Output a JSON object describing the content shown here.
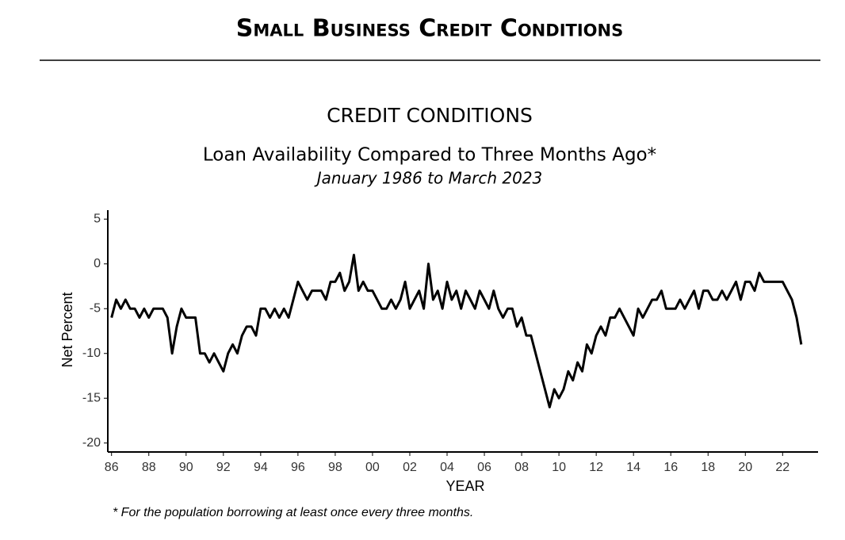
{
  "header": {
    "title": "Small Business Credit Conditions"
  },
  "chart_data": {
    "type": "line",
    "title": "CREDIT CONDITIONS",
    "subtitle": "Loan Availability Compared to Three Months Ago*",
    "period": "January 1986 to March 2023",
    "ylabel": "Net Percent",
    "xlabel": "YEAR",
    "footnote": "* For the population borrowing at least once every three months.",
    "xlim": [
      1985.8,
      2023.9
    ],
    "ylim": [
      -21,
      6
    ],
    "yticks": [
      5,
      0,
      -5,
      -10,
      -15,
      -20
    ],
    "xticks": [
      {
        "value": 1986,
        "label": "86"
      },
      {
        "value": 1988,
        "label": "88"
      },
      {
        "value": 1990,
        "label": "90"
      },
      {
        "value": 1992,
        "label": "92"
      },
      {
        "value": 1994,
        "label": "94"
      },
      {
        "value": 1996,
        "label": "96"
      },
      {
        "value": 1998,
        "label": "98"
      },
      {
        "value": 2000,
        "label": "00"
      },
      {
        "value": 2002,
        "label": "02"
      },
      {
        "value": 2004,
        "label": "04"
      },
      {
        "value": 2006,
        "label": "06"
      },
      {
        "value": 2008,
        "label": "08"
      },
      {
        "value": 2010,
        "label": "10"
      },
      {
        "value": 2012,
        "label": "12"
      },
      {
        "value": 2014,
        "label": "14"
      },
      {
        "value": 2016,
        "label": "16"
      },
      {
        "value": 2018,
        "label": "18"
      },
      {
        "value": 2020,
        "label": "20"
      },
      {
        "value": 2022,
        "label": "22"
      }
    ],
    "grid": false,
    "color": "#000000",
    "x": [
      1986,
      1986.25,
      1986.5,
      1986.75,
      1987,
      1987.25,
      1987.5,
      1987.75,
      1988,
      1988.25,
      1988.5,
      1988.75,
      1989,
      1989.25,
      1989.5,
      1989.75,
      1990,
      1990.25,
      1990.5,
      1990.75,
      1991,
      1991.25,
      1991.5,
      1991.75,
      1992,
      1992.25,
      1992.5,
      1992.75,
      1993,
      1993.25,
      1993.5,
      1993.75,
      1994,
      1994.25,
      1994.5,
      1994.75,
      1995,
      1995.25,
      1995.5,
      1995.75,
      1996,
      1996.25,
      1996.5,
      1996.75,
      1997,
      1997.25,
      1997.5,
      1997.75,
      1998,
      1998.25,
      1998.5,
      1998.75,
      1999,
      1999.25,
      1999.5,
      1999.75,
      2000,
      2000.25,
      2000.5,
      2000.75,
      2001,
      2001.25,
      2001.5,
      2001.75,
      2002,
      2002.25,
      2002.5,
      2002.75,
      2003,
      2003.25,
      2003.5,
      2003.75,
      2004,
      2004.25,
      2004.5,
      2004.75,
      2005,
      2005.25,
      2005.5,
      2005.75,
      2006,
      2006.25,
      2006.5,
      2006.75,
      2007,
      2007.25,
      2007.5,
      2007.75,
      2008,
      2008.25,
      2008.5,
      2008.75,
      2009,
      2009.25,
      2009.5,
      2009.75,
      2010,
      2010.25,
      2010.5,
      2010.75,
      2011,
      2011.25,
      2011.5,
      2011.75,
      2012,
      2012.25,
      2012.5,
      2012.75,
      2013,
      2013.25,
      2013.5,
      2013.75,
      2014,
      2014.25,
      2014.5,
      2014.75,
      2015,
      2015.25,
      2015.5,
      2015.75,
      2016,
      2016.25,
      2016.5,
      2016.75,
      2017,
      2017.25,
      2017.5,
      2017.75,
      2018,
      2018.25,
      2018.5,
      2018.75,
      2019,
      2019.25,
      2019.5,
      2019.75,
      2020,
      2020.25,
      2020.5,
      2020.75,
      2021,
      2021.25,
      2021.5,
      2021.75,
      2022,
      2022.25,
      2022.5,
      2022.75,
      2023
    ],
    "values": [
      -6,
      -4,
      -5,
      -4,
      -5,
      -5,
      -6,
      -5,
      -6,
      -5,
      -5,
      -5,
      -6,
      -10,
      -7,
      -5,
      -6,
      -6,
      -6,
      -10,
      -10,
      -11,
      -10,
      -11,
      -12,
      -10,
      -9,
      -10,
      -8,
      -7,
      -7,
      -8,
      -5,
      -5,
      -6,
      -5,
      -6,
      -5,
      -6,
      -4,
      -2,
      -3,
      -4,
      -3,
      -3,
      -3,
      -4,
      -2,
      -2,
      -1,
      -3,
      -2,
      1,
      -3,
      -2,
      -3,
      -3,
      -4,
      -5,
      -5,
      -4,
      -5,
      -4,
      -2,
      -5,
      -4,
      -3,
      -5,
      0,
      -4,
      -3,
      -5,
      -2,
      -4,
      -3,
      -5,
      -3,
      -4,
      -5,
      -3,
      -4,
      -5,
      -3,
      -5,
      -6,
      -5,
      -5,
      -7,
      -6,
      -8,
      -8,
      -10,
      -12,
      -14,
      -16,
      -14,
      -15,
      -14,
      -12,
      -13,
      -11,
      -12,
      -9,
      -10,
      -8,
      -7,
      -8,
      -6,
      -6,
      -5,
      -6,
      -7,
      -8,
      -5,
      -6,
      -5,
      -4,
      -4,
      -3,
      -5,
      -5,
      -5,
      -4,
      -5,
      -4,
      -3,
      -5,
      -3,
      -3,
      -4,
      -4,
      -3,
      -4,
      -3,
      -2,
      -4,
      -2,
      -2,
      -3,
      -1,
      -2,
      -2,
      -2,
      -2,
      -2,
      -3,
      -4,
      -6,
      -9
    ]
  }
}
